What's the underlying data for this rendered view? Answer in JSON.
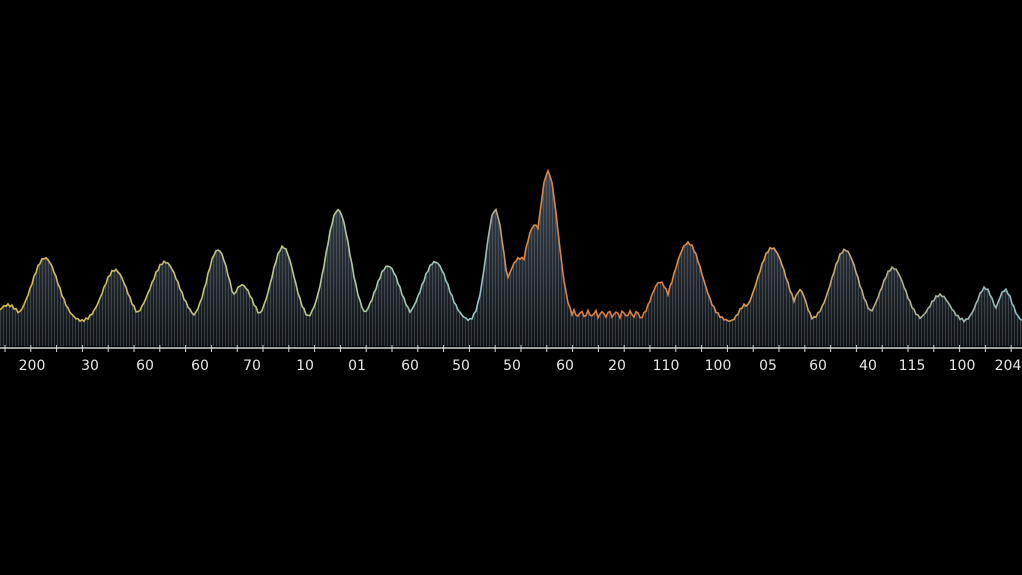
{
  "axis": {
    "labels": [
      "200",
      "30",
      "60",
      "60",
      "70",
      "10",
      "01",
      "60",
      "50",
      "50",
      "60",
      "20",
      "110",
      "100",
      "05",
      "60",
      "40",
      "115",
      "100",
      "204"
    ]
  }
}
